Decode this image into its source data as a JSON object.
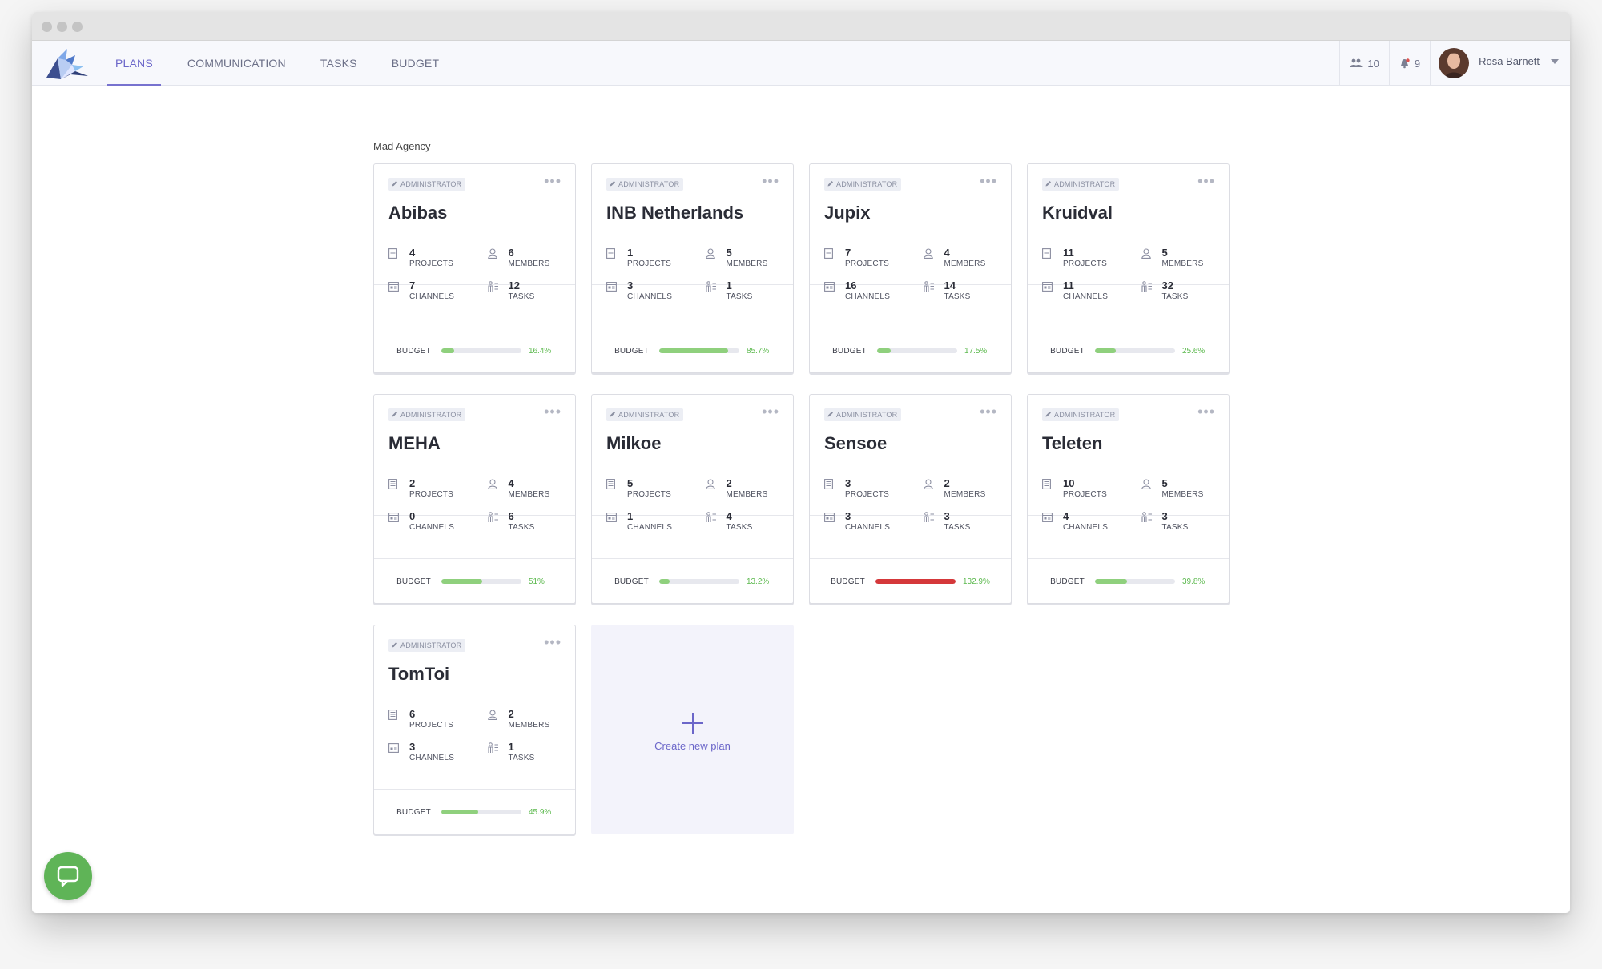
{
  "nav": {
    "tabs": [
      {
        "label": "PLANS",
        "active": true
      },
      {
        "label": "COMMUNICATION",
        "active": false
      },
      {
        "label": "TASKS",
        "active": false
      },
      {
        "label": "BUDGET",
        "active": false
      }
    ],
    "team_count": "10",
    "notification_count": "9",
    "user_name": "Rosa Barnett"
  },
  "org_name": "Mad Agency",
  "labels": {
    "badge": "ADMINISTRATOR",
    "projects": "PROJECTS",
    "members": "MEMBERS",
    "channels": "CHANNELS",
    "tasks": "TASKS",
    "budget": "BUDGET",
    "create": "Create new plan"
  },
  "plans": [
    {
      "name": "Abibas",
      "projects": "4",
      "members": "6",
      "channels": "7",
      "tasks": "12",
      "budget_pct": "16.4%",
      "budget_fraction": 0.164
    },
    {
      "name": "INB Netherlands",
      "projects": "1",
      "members": "5",
      "channels": "3",
      "tasks": "1",
      "budget_pct": "85.7%",
      "budget_fraction": 0.857
    },
    {
      "name": "Jupix",
      "projects": "7",
      "members": "4",
      "channels": "16",
      "tasks": "14",
      "budget_pct": "17.5%",
      "budget_fraction": 0.175
    },
    {
      "name": "Kruidval",
      "projects": "11",
      "members": "5",
      "channels": "11",
      "tasks": "32",
      "budget_pct": "25.6%",
      "budget_fraction": 0.256
    },
    {
      "name": "MEHA",
      "projects": "2",
      "members": "4",
      "channels": "0",
      "tasks": "6",
      "budget_pct": "51%",
      "budget_fraction": 0.51
    },
    {
      "name": "Milkoe",
      "projects": "5",
      "members": "2",
      "channels": "1",
      "tasks": "4",
      "budget_pct": "13.2%",
      "budget_fraction": 0.132
    },
    {
      "name": "Sensoe",
      "projects": "3",
      "members": "2",
      "channels": "3",
      "tasks": "3",
      "budget_pct": "132.9%",
      "budget_fraction": 1.329
    },
    {
      "name": "Teleten",
      "projects": "10",
      "members": "5",
      "channels": "4",
      "tasks": "3",
      "budget_pct": "39.8%",
      "budget_fraction": 0.398
    },
    {
      "name": "TomToi",
      "projects": "6",
      "members": "2",
      "channels": "3",
      "tasks": "1",
      "budget_pct": "45.9%",
      "budget_fraction": 0.459
    }
  ],
  "colors": {
    "accent": "#6b66c9",
    "budget_ok": "#8fd07d",
    "budget_over": "#d5383a",
    "chat": "#5fb457"
  }
}
